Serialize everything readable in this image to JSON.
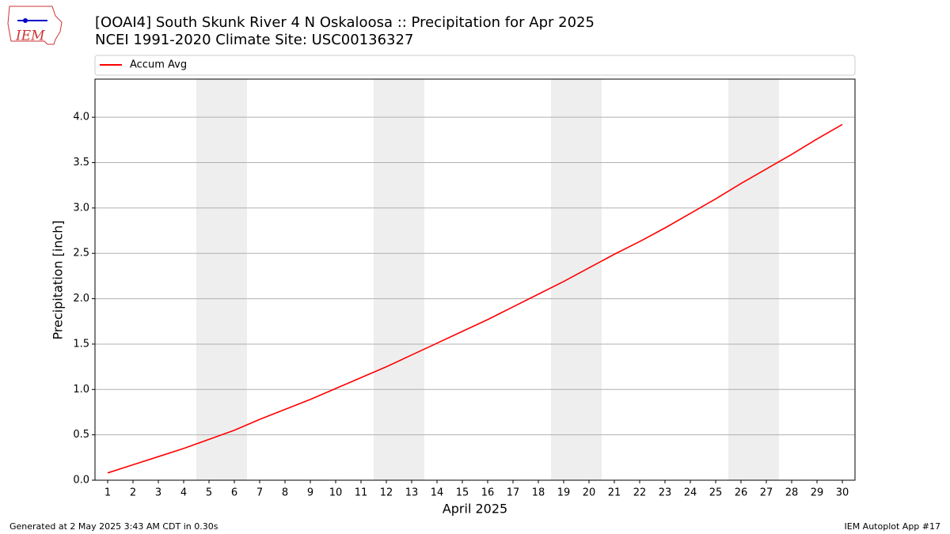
{
  "chart_data": {
    "type": "line",
    "title": "[OOAI4] South Skunk River 4 N Oskaloosa :: Precipitation for Apr 2025",
    "subtitle": "NCEI 1991-2020 Climate Site: USC00136327",
    "xlabel": "April 2025",
    "ylabel": "Precipitation [inch]",
    "x": [
      1,
      2,
      3,
      4,
      5,
      6,
      7,
      8,
      9,
      10,
      11,
      12,
      13,
      14,
      15,
      16,
      17,
      18,
      19,
      20,
      21,
      22,
      23,
      24,
      25,
      26,
      27,
      28,
      29,
      30
    ],
    "series": [
      {
        "name": "Accum Avg",
        "color": "#ff0000",
        "values": [
          0.08,
          0.17,
          0.26,
          0.35,
          0.45,
          0.55,
          0.67,
          0.78,
          0.89,
          1.01,
          1.13,
          1.25,
          1.38,
          1.51,
          1.64,
          1.77,
          1.91,
          2.05,
          2.19,
          2.34,
          2.49,
          2.63,
          2.78,
          2.94,
          3.1,
          3.27,
          3.43,
          3.59,
          3.76,
          3.92
        ]
      }
    ],
    "xlim": [
      0.5,
      30.5
    ],
    "xticks": [
      1,
      2,
      3,
      4,
      5,
      6,
      7,
      8,
      9,
      10,
      11,
      12,
      13,
      14,
      15,
      16,
      17,
      18,
      19,
      20,
      21,
      22,
      23,
      24,
      25,
      26,
      27,
      28,
      29,
      30
    ],
    "ylim": [
      0,
      4.42
    ],
    "yticks": [
      {
        "value": 0,
        "label": "0.0"
      },
      {
        "value": 0.5,
        "label": "0.5"
      },
      {
        "value": 1,
        "label": "1.0"
      },
      {
        "value": 1.5,
        "label": "1.5"
      },
      {
        "value": 2,
        "label": "2.0"
      },
      {
        "value": 2.5,
        "label": "2.5"
      },
      {
        "value": 3,
        "label": "3.0"
      },
      {
        "value": 3.5,
        "label": "3.5"
      },
      {
        "value": 4,
        "label": "4.0"
      }
    ],
    "shaded_spans": [
      [
        4.5,
        6.5
      ],
      [
        11.5,
        13.5
      ],
      [
        18.5,
        20.5
      ],
      [
        25.5,
        27.5
      ]
    ],
    "shade_color": "#eeeeee",
    "grid": true,
    "legend": "top",
    "logo_text": "IEM",
    "footer_left": "Generated at 2 May 2025 3:43 AM CDT in 0.30s",
    "footer_right": "IEM Autoplot App #17"
  }
}
